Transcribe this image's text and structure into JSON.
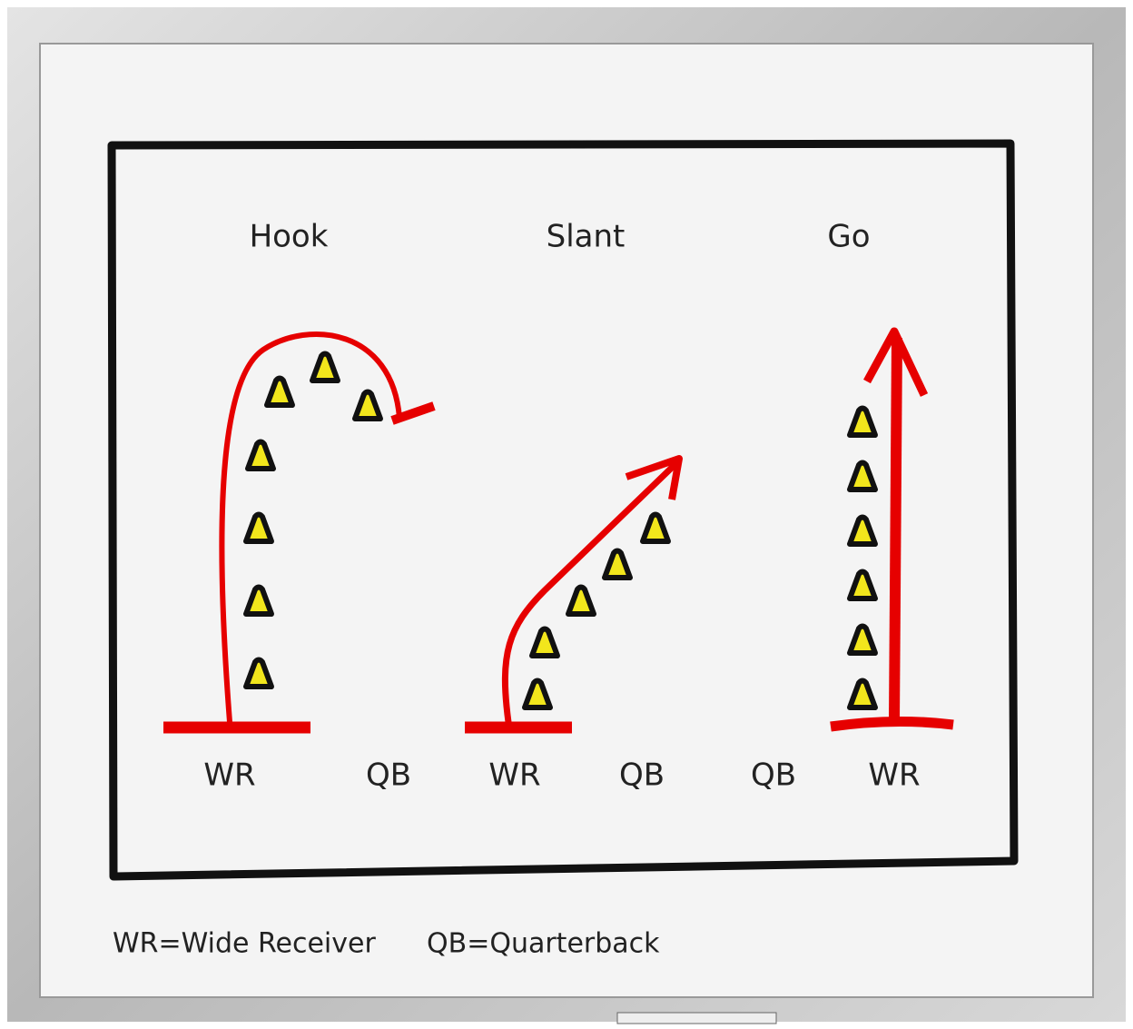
{
  "routes": [
    {
      "title": "Hook",
      "positions": [
        "WR",
        "QB"
      ]
    },
    {
      "title": "Slant",
      "positions": [
        "WR",
        "QB"
      ]
    },
    {
      "title": "Go",
      "positions": [
        "QB",
        "WR"
      ]
    }
  ],
  "legend": [
    "WR=Wide Receiver",
    "QB=Quarterback"
  ]
}
